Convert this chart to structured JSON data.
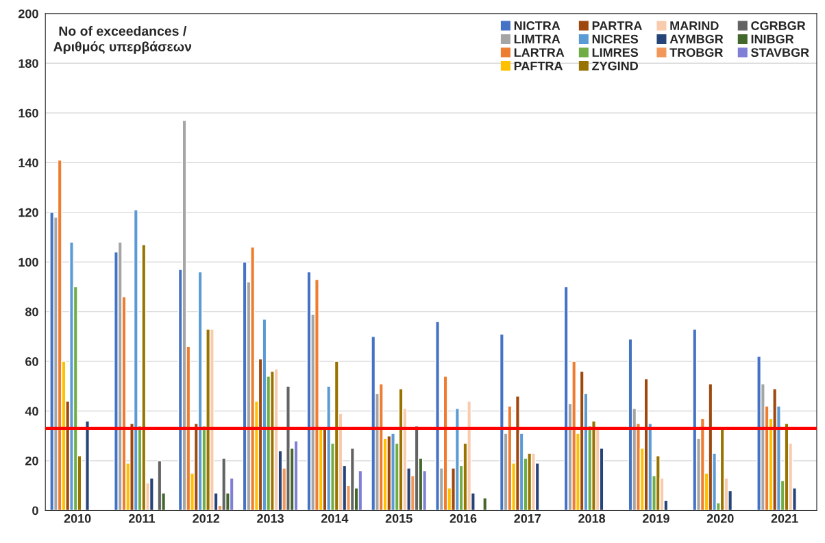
{
  "chart_data": {
    "type": "bar",
    "title": "No of exceedances /\nΑριθμός υπερβάσεων",
    "categories": [
      "2010",
      "2011",
      "2012",
      "2013",
      "2014",
      "2015",
      "2016",
      "2017",
      "2018",
      "2019",
      "2020",
      "2021"
    ],
    "series": [
      {
        "name": "NICTRA",
        "color": "#4472c4",
        "values": [
          120,
          104,
          97,
          100,
          96,
          70,
          76,
          71,
          90,
          69,
          73,
          62
        ]
      },
      {
        "name": "LIMTRA",
        "color": "#a5a5a5",
        "values": [
          118,
          108,
          157,
          92,
          79,
          47,
          17,
          31,
          43,
          41,
          29,
          51
        ]
      },
      {
        "name": "LARTRA",
        "color": "#ed7d31",
        "values": [
          141,
          86,
          66,
          106,
          93,
          51,
          54,
          42,
          60,
          35,
          37,
          42
        ]
      },
      {
        "name": "PAFTRA",
        "color": "#ffc000",
        "values": [
          60,
          19,
          15,
          44,
          33,
          29,
          9,
          19,
          31,
          25,
          15,
          37
        ]
      },
      {
        "name": "PARTRA",
        "color": "#9e480e",
        "values": [
          44,
          35,
          35,
          61,
          33,
          30,
          17,
          46,
          56,
          53,
          51,
          49
        ]
      },
      {
        "name": "NICRES",
        "color": "#5b9bd5",
        "values": [
          108,
          121,
          96,
          77,
          50,
          31,
          41,
          31,
          47,
          35,
          23,
          42
        ]
      },
      {
        "name": "LIMRES",
        "color": "#70ad47",
        "values": [
          90,
          34,
          34,
          54,
          27,
          27,
          18,
          21,
          34,
          14,
          3,
          12
        ]
      },
      {
        "name": "ZYGIND",
        "color": "#997300",
        "values": [
          22,
          107,
          73,
          56,
          60,
          49,
          27,
          23,
          36,
          22,
          33,
          35
        ]
      },
      {
        "name": "MARIND",
        "color": "#f8cbad",
        "values": [
          null,
          11,
          73,
          57,
          39,
          41,
          44,
          23,
          33,
          13,
          13,
          27
        ]
      },
      {
        "name": "AYMBGR",
        "color": "#264478",
        "values": [
          36,
          13,
          7,
          24,
          18,
          17,
          7,
          19,
          25,
          4,
          8,
          9
        ]
      },
      {
        "name": "TROBGR",
        "color": "#f1975a",
        "values": [
          null,
          null,
          2,
          17,
          10,
          14,
          null,
          null,
          null,
          null,
          null,
          null
        ]
      },
      {
        "name": "CGRBGR",
        "color": "#636363",
        "values": [
          null,
          20,
          21,
          50,
          25,
          34,
          null,
          null,
          null,
          null,
          null,
          null
        ]
      },
      {
        "name": "INIBGR",
        "color": "#43682b",
        "values": [
          null,
          7,
          7,
          25,
          9,
          21,
          5,
          null,
          null,
          null,
          null,
          null
        ]
      },
      {
        "name": "STAVBGR",
        "color": "#7f7fd5",
        "values": [
          null,
          null,
          13,
          28,
          16,
          16,
          null,
          null,
          null,
          null,
          null,
          null
        ]
      }
    ],
    "ylim": [
      0,
      200
    ],
    "yticks": [
      0,
      20,
      40,
      60,
      80,
      100,
      120,
      140,
      160,
      180,
      200
    ],
    "ref_lines": [
      {
        "axis": "y",
        "value": 33,
        "color": "#ff0000"
      }
    ],
    "grid": "y",
    "legend": "top right"
  }
}
